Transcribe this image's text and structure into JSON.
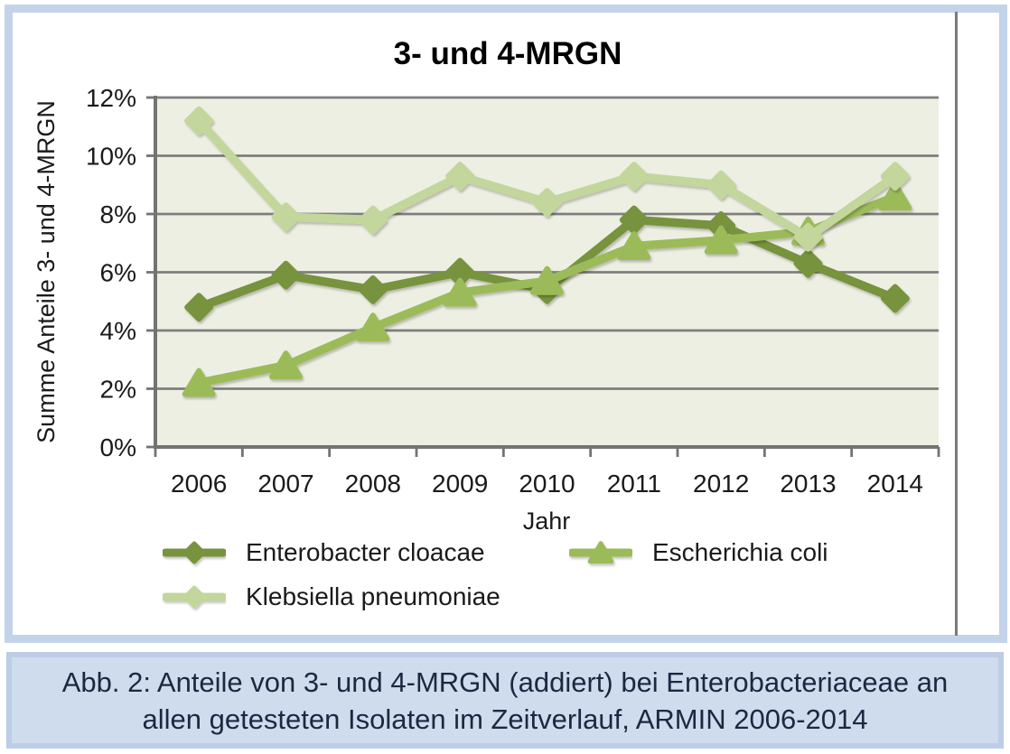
{
  "chart_data": {
    "type": "line",
    "title": "3- und 4-MRGN",
    "xlabel": "Jahr",
    "ylabel": "Summe Anteile 3- und 4-MRGN",
    "categories": [
      "2006",
      "2007",
      "2008",
      "2009",
      "2010",
      "2011",
      "2012",
      "2013",
      "2014"
    ],
    "series": [
      {
        "name": "Enterobacter cloacae",
        "marker": "diamond",
        "color": "#77933c",
        "values": [
          4.8,
          5.9,
          5.4,
          6.0,
          5.4,
          7.8,
          7.6,
          6.3,
          5.1
        ]
      },
      {
        "name": "Escherichia coli",
        "marker": "triangle",
        "color": "#9bbb59",
        "values": [
          2.2,
          2.8,
          4.1,
          5.3,
          5.7,
          6.9,
          7.1,
          7.4,
          8.6
        ]
      },
      {
        "name": "Klebsiella pneumoniae",
        "marker": "diamond",
        "color": "#c3d69b",
        "values": [
          11.2,
          7.9,
          7.8,
          9.3,
          8.4,
          9.3,
          9.0,
          7.2,
          9.3
        ]
      }
    ],
    "ylim": [
      0,
      12
    ],
    "y_tick_step": 2,
    "y_tick_suffix": "%",
    "grid": true,
    "legend_position": "bottom"
  },
  "caption": {
    "line1": "Abb. 2: Anteile von 3- und 4-MRGN (addiert) bei Enterobacteriaceae an",
    "line2": "allen getesteten Isolaten im Zeitverlauf, ARMIN 2006-2014"
  },
  "colors": {
    "figure_border": "#c3d3e9",
    "caption_bg": "#cfdcee",
    "caption_border": "#bdcde7",
    "caption_text": "#1c2840",
    "plot_bg": "#edefe3",
    "grid": "#7e7e7e",
    "axis": "#737373",
    "divider": "#7a7a7a",
    "text": "#1a1a1a"
  }
}
